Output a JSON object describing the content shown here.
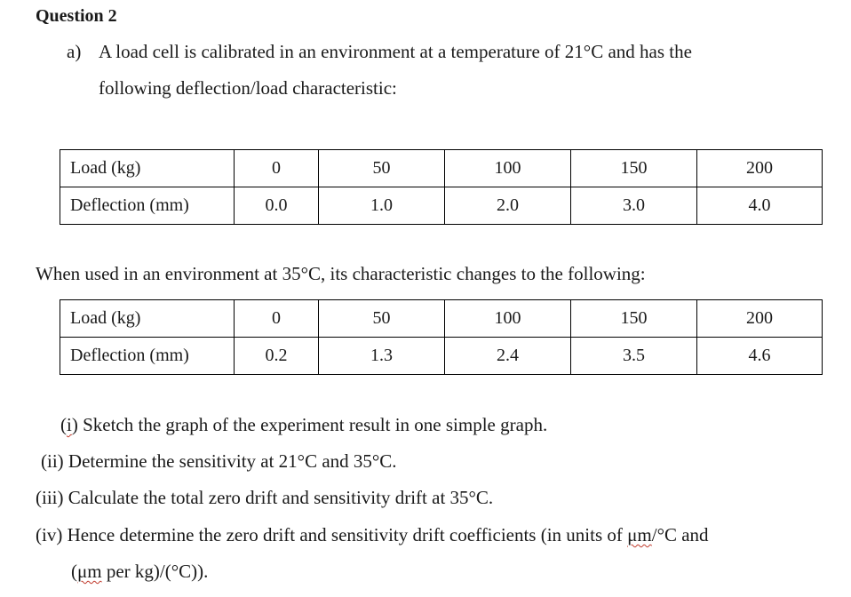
{
  "question_title": "Question 2",
  "part_a": {
    "marker": "a)",
    "line1": "A load cell is calibrated in an environment at a temperature of 21°C and has the",
    "line2": "following deflection/load characteristic:"
  },
  "table1": {
    "rows": [
      {
        "label": "Load (kg)",
        "cells": [
          "0",
          "50",
          "100",
          "150",
          "200"
        ]
      },
      {
        "label": "Deflection (mm)",
        "cells": [
          "0.0",
          "1.0",
          "2.0",
          "3.0",
          "4.0"
        ]
      }
    ]
  },
  "between_text": "When used in an environment at 35°C, its characteristic changes to the following:",
  "table2": {
    "rows": [
      {
        "label": "Load (kg)",
        "cells": [
          "0",
          "50",
          "100",
          "150",
          "200"
        ]
      },
      {
        "label": "Deflection (mm)",
        "cells": [
          "0.2",
          "1.3",
          "2.4",
          "3.5",
          "4.6"
        ]
      }
    ]
  },
  "questions": {
    "q1_open": "(",
    "q1_num": "i",
    "q1_rest": ") Sketch the graph of the experiment result in one simple graph.",
    "q2": "(ii) Determine the sensitivity at 21°C and 35°C.",
    "q3": "(iii) Calculate the total zero drift and sensitivity drift at 35°C.",
    "q4_pre": "(iv) Hence determine the zero drift and sensitivity drift coefficients (in units of ",
    "q4_unit": "μm",
    "q4_post": "/°C and",
    "q4_line2_open": "(",
    "q4_line2_unit": "μm",
    "q4_line2_rest": " per kg)/(°C))."
  }
}
